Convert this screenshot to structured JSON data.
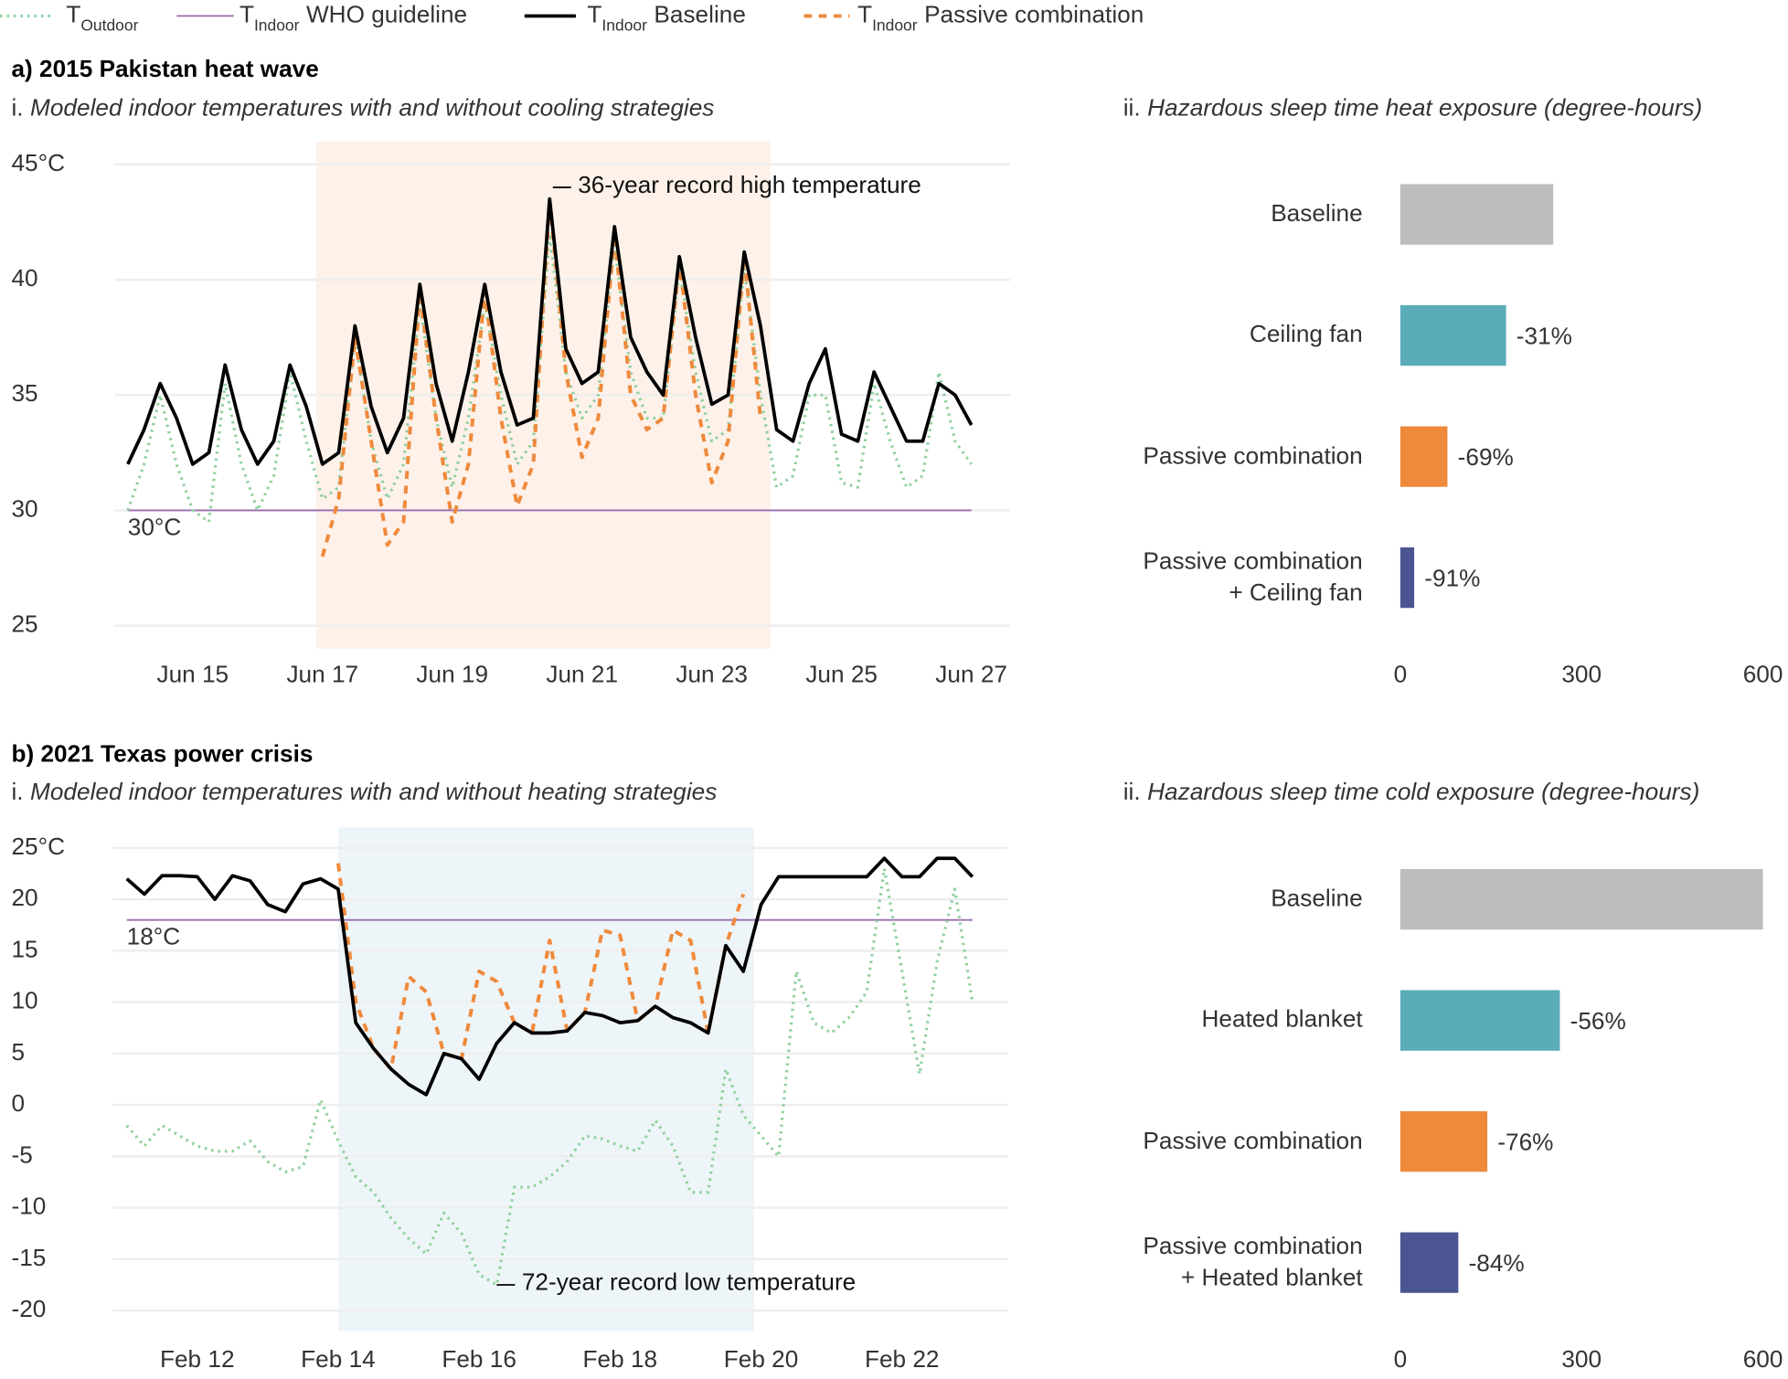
{
  "legend": [
    {
      "main": "T",
      "sub": "Outdoor",
      "color": "#8fd19e",
      "style": "dotted"
    },
    {
      "main": "T",
      "sub": "Indoor",
      "suffix": "WHO guideline",
      "color": "#9b6fb0",
      "style": "thin"
    },
    {
      "main": "T",
      "sub": "Indoor",
      "suffix": "Baseline",
      "color": "#000000",
      "style": "solid"
    },
    {
      "main": "T",
      "sub": "Indoor",
      "suffix": "Passive combination",
      "color": "#ef8a3c",
      "style": "dashed"
    }
  ],
  "chart_data": [
    {
      "type": "line",
      "title": "a) 2015 Pakistan heat wave",
      "subtitle_prefix": "i.",
      "subtitle": "Modeled indoor temperatures with and without cooling strategies",
      "x": [
        14,
        14.25,
        14.5,
        14.75,
        15,
        15.25,
        15.5,
        15.75,
        16,
        16.25,
        16.5,
        16.75,
        17,
        17.25,
        17.5,
        17.75,
        18,
        18.25,
        18.5,
        18.75,
        19,
        19.25,
        19.5,
        19.75,
        20,
        20.25,
        20.5,
        20.75,
        21,
        21.25,
        21.5,
        21.75,
        22,
        22.25,
        22.5,
        22.75,
        23,
        23.25,
        23.5,
        23.75,
        24,
        24.25,
        24.5,
        24.75,
        25,
        25.25,
        25.5,
        25.75,
        26,
        26.25,
        26.5,
        26.75,
        27
      ],
      "series": [
        {
          "color": "#8fd19e",
          "style": "dotted",
          "values": [
            30,
            32,
            35,
            32,
            30,
            29.5,
            35.5,
            32,
            30,
            31.5,
            36,
            33,
            30.5,
            31,
            37.5,
            33,
            30.5,
            32,
            39,
            34,
            31,
            34,
            39,
            35,
            32,
            33,
            42,
            36,
            34,
            35,
            41.5,
            36,
            34,
            34,
            40.5,
            36,
            33,
            33.5,
            40.5,
            35,
            31,
            31.5,
            35,
            35,
            31.2,
            31,
            35.5,
            33,
            31,
            31.5,
            36,
            33,
            32
          ]
        },
        {
          "color": "#ef8a3c",
          "style": "dashed",
          "values": [
            null,
            null,
            null,
            null,
            null,
            null,
            null,
            null,
            null,
            null,
            null,
            null,
            28,
            30.5,
            37.5,
            33,
            28.5,
            29.5,
            39.5,
            34,
            29.5,
            32,
            39.5,
            34,
            30.2,
            32,
            43.5,
            36,
            32.3,
            34,
            42,
            35,
            33.5,
            34,
            40.8,
            35,
            31.2,
            33,
            41,
            34,
            null,
            null,
            null,
            null,
            null,
            null,
            null,
            null,
            null,
            null,
            null,
            null,
            null
          ]
        },
        {
          "color": "#000000",
          "style": "solid",
          "values": [
            32,
            33.5,
            35.5,
            34,
            32,
            32.5,
            36.3,
            33.5,
            32,
            33,
            36.3,
            34.5,
            32,
            32.5,
            38,
            34.5,
            32.5,
            34,
            39.8,
            35.5,
            33,
            36,
            39.8,
            36,
            33.7,
            34,
            43.5,
            37,
            35.5,
            36,
            42.3,
            37.5,
            36,
            35,
            41,
            37.5,
            34.6,
            35,
            41.2,
            38,
            33.5,
            33,
            35.5,
            37,
            33.3,
            33,
            36,
            34.5,
            33,
            33,
            35.5,
            35,
            33.7
          ]
        }
      ],
      "xlim": [
        13.8,
        27.6
      ],
      "ylim": [
        24,
        46
      ],
      "xticks": [
        {
          "value": 15,
          "label": "Jun 15"
        },
        {
          "value": 17,
          "label": "Jun 17"
        },
        {
          "value": 19,
          "label": "Jun 19"
        },
        {
          "value": 21,
          "label": "Jun 21"
        },
        {
          "value": 23,
          "label": "Jun 23"
        },
        {
          "value": 25,
          "label": "Jun 25"
        },
        {
          "value": 27,
          "label": "Jun 27"
        }
      ],
      "yticks": [
        25,
        30,
        35,
        40,
        {
          "value": 45,
          "label": "45°C"
        }
      ],
      "grid": true,
      "shaded_range": [
        16.9,
        23.9
      ],
      "shade_color": "#fdf1e9",
      "guideline": {
        "value": 30,
        "label": "30°C",
        "color": "#9b6fb0"
      },
      "annotation": {
        "text": "36-year record high temperature",
        "x": 20.55,
        "y": 44
      }
    },
    {
      "type": "bar",
      "subtitle_prefix": "ii.",
      "subtitle": "Hazardous sleep time heat exposure (degree-hours)",
      "categories": [
        "Baseline",
        "Ceiling fan",
        "Passive combination",
        "Passive combination\n+ Ceiling fan"
      ],
      "values": [
        253,
        175,
        78,
        23
      ],
      "colors": [
        "#bdbdbd",
        "#5aacb8",
        "#ef8a3c",
        "#4a5592"
      ],
      "change_labels": [
        null,
        "-31%",
        "-69%",
        "-91%"
      ],
      "xlim": [
        0,
        600
      ],
      "xticks": [
        0,
        300,
        600
      ]
    },
    {
      "type": "line",
      "title": "b) 2021 Texas power crisis",
      "subtitle_prefix": "i.",
      "subtitle": "Modeled indoor temperatures with and without heating strategies",
      "x": [
        11,
        11.25,
        11.5,
        11.75,
        12,
        12.25,
        12.5,
        12.75,
        13,
        13.25,
        13.5,
        13.75,
        14,
        14.25,
        14.5,
        14.75,
        15,
        15.25,
        15.5,
        15.75,
        16,
        16.25,
        16.5,
        16.75,
        17,
        17.25,
        17.5,
        17.75,
        18,
        18.25,
        18.5,
        18.75,
        19,
        19.25,
        19.5,
        19.75,
        20,
        20.25,
        20.5,
        20.75,
        21,
        21.25,
        21.5,
        21.75,
        22,
        22.25,
        22.5,
        22.75,
        23
      ],
      "series": [
        {
          "color": "#8fd19e",
          "style": "dotted",
          "values": [
            -2,
            -4,
            -2,
            -3,
            -4,
            -4.5,
            -4.5,
            -3.5,
            -5.5,
            -6.5,
            -6,
            0.5,
            -3.5,
            -7,
            -8.5,
            -11,
            -13,
            -14.5,
            -10.5,
            -12.5,
            -16.5,
            -17.5,
            -8,
            -8,
            -7,
            -5.5,
            -3,
            -3.3,
            -4,
            -4.5,
            -1.5,
            -4,
            -8.5,
            -8.5,
            3.5,
            -1,
            -3,
            -5,
            13,
            8,
            7,
            8.5,
            11,
            23,
            13,
            3,
            14,
            21,
            10
          ]
        },
        {
          "color": "#ef8a3c",
          "style": "dashed",
          "values": [
            null,
            null,
            null,
            null,
            null,
            null,
            null,
            null,
            null,
            null,
            null,
            null,
            23.5,
            10,
            5.5,
            3.5,
            12.5,
            11,
            5,
            4.5,
            13,
            12,
            8,
            7,
            16,
            7.2,
            9,
            17,
            16.5,
            8.2,
            9.6,
            17,
            16,
            7,
            15.5,
            20.5,
            null,
            null,
            null,
            null,
            null,
            null,
            null,
            null,
            null,
            null,
            null,
            null,
            null
          ]
        },
        {
          "color": "#000000",
          "style": "solid",
          "values": [
            22,
            20.5,
            22.3,
            22.3,
            22.2,
            20,
            22.3,
            21.8,
            19.5,
            18.8,
            21.5,
            22,
            21,
            8,
            5.5,
            3.5,
            2,
            1,
            5,
            4.5,
            2.5,
            6,
            8,
            7,
            7,
            7.2,
            9,
            8.7,
            8,
            8.2,
            9.6,
            8.5,
            8,
            7,
            15.5,
            13,
            19.5,
            22.2,
            22.2,
            22.2,
            22.2,
            22.2,
            22.2,
            24,
            22.2,
            22.2,
            24,
            24,
            22.2
          ]
        }
      ],
      "xlim": [
        10.8,
        23.5
      ],
      "ylim": [
        -22,
        27
      ],
      "xticks": [
        {
          "value": 12,
          "label": "Feb 12"
        },
        {
          "value": 14,
          "label": "Feb 14"
        },
        {
          "value": 16,
          "label": "Feb 16"
        },
        {
          "value": 18,
          "label": "Feb 18"
        },
        {
          "value": 20,
          "label": "Feb 20"
        },
        {
          "value": 22,
          "label": "Feb 22"
        }
      ],
      "yticks": [
        -20,
        -15,
        -10,
        -5,
        0,
        5,
        10,
        15,
        20,
        {
          "value": 25,
          "label": "25°C"
        }
      ],
      "grid": true,
      "shaded_range": [
        14,
        19.9
      ],
      "shade_color": "#eef5f8",
      "guideline": {
        "value": 18,
        "label": "18°C",
        "color": "#9b6fb0"
      },
      "annotation": {
        "text": "72-year record low temperature",
        "x": 16.25,
        "y": -17.5
      }
    },
    {
      "type": "bar",
      "subtitle_prefix": "ii.",
      "subtitle": "Hazardous sleep time cold exposure (degree-hours)",
      "categories": [
        "Baseline",
        "Heated blanket",
        "Passive combination",
        "Passive combination\n+ Heated blanket"
      ],
      "values": [
        600,
        264,
        144,
        96
      ],
      "colors": [
        "#bdbdbd",
        "#5aacb8",
        "#ef8a3c",
        "#4a5592"
      ],
      "change_labels": [
        null,
        "-56%",
        "-76%",
        "-84%"
      ],
      "xlim": [
        0,
        600
      ],
      "xticks": [
        0,
        300,
        600
      ]
    }
  ]
}
